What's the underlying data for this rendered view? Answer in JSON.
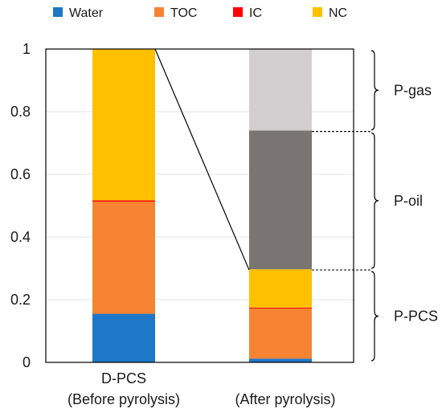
{
  "chart_data": {
    "type": "bar",
    "stacked": true,
    "categories": [
      "D-PCS\n(Before pyrolysis)",
      "(After pyrolysis)"
    ],
    "y_ticks": [
      "0",
      "0.2",
      "0.4",
      "0.6",
      "0.8",
      "1"
    ],
    "ylim": [
      0,
      1
    ],
    "grid": true,
    "legend_position": "top",
    "legend": [
      {
        "name": "Water",
        "color": "#1f77c8"
      },
      {
        "name": "TOC",
        "color": "#f68331"
      },
      {
        "name": "IC",
        "color": "#ff0000"
      },
      {
        "name": "NC",
        "color": "#ffc000"
      }
    ],
    "bars": [
      {
        "category": "D-PCS (Before pyrolysis)",
        "segments": [
          {
            "series": "Water",
            "value": 0.155,
            "color": "#1f77c8"
          },
          {
            "series": "TOC",
            "value": 0.358,
            "color": "#f68331"
          },
          {
            "series": "IC",
            "value": 0.004,
            "color": "#ff0000"
          },
          {
            "series": "NC",
            "value": 0.483,
            "color": "#ffc000"
          }
        ]
      },
      {
        "category": "(After pyrolysis)",
        "segments": [
          {
            "series": "Water",
            "value": 0.012,
            "color": "#1f77c8"
          },
          {
            "series": "TOC",
            "value": 0.16,
            "color": "#f68331"
          },
          {
            "series": "IC",
            "value": 0.003,
            "color": "#ff0000"
          },
          {
            "series": "NC",
            "value": 0.122,
            "color": "#ffc000"
          },
          {
            "series": "P-oil",
            "value": 0.443,
            "color": "#7a7573"
          },
          {
            "series": "P-gas",
            "value": 0.26,
            "color": "#d1cfcf"
          }
        ]
      }
    ],
    "brackets": [
      {
        "label": "P-gas",
        "from": 0.737,
        "to": 1.0
      },
      {
        "label": "P-oil",
        "from": 0.295,
        "to": 0.737
      },
      {
        "label": "P-PCS",
        "from": 0.0,
        "to": 0.295
      }
    ],
    "connector": {
      "from_value": 1.0,
      "to_value": 0.295
    }
  }
}
